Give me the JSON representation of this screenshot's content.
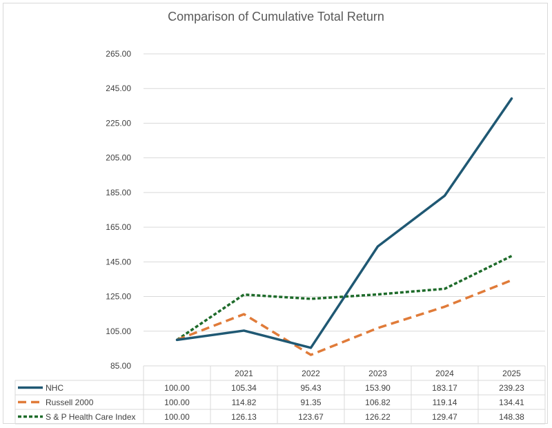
{
  "chart_data": {
    "type": "line",
    "title": "Comparison of Cumulative Total Return",
    "xlabel": "",
    "ylabel": "",
    "categories": [
      "",
      "2021",
      "2022",
      "2023",
      "2024",
      "2025"
    ],
    "yticks": [
      "85.00",
      "105.00",
      "125.00",
      "145.00",
      "165.00",
      "185.00",
      "205.00",
      "225.00",
      "245.00",
      "265.00"
    ],
    "ylim": [
      85,
      265
    ],
    "grid": true,
    "data_table": true,
    "series": [
      {
        "name": "NHC",
        "values": [
          100.0,
          105.34,
          95.43,
          153.9,
          183.17,
          239.23
        ],
        "labels": [
          "100.00",
          "105.34",
          "95.43",
          "153.90",
          "183.17",
          "239.23"
        ],
        "color": "#1f5873",
        "style": "solid"
      },
      {
        "name": "Russell 2000",
        "values": [
          100.0,
          114.82,
          91.35,
          106.82,
          119.14,
          134.41
        ],
        "labels": [
          "100.00",
          "114.82",
          "91.35",
          "106.82",
          "119.14",
          "134.41"
        ],
        "color": "#e07b39",
        "style": "dashed"
      },
      {
        "name": "S & P Health Care Index",
        "values": [
          100.0,
          126.13,
          123.67,
          126.22,
          129.47,
          148.38
        ],
        "labels": [
          "100.00",
          "126.13",
          "123.67",
          "126.22",
          "129.47",
          "148.38"
        ],
        "color": "#1e6b2a",
        "style": "dotted"
      }
    ]
  }
}
